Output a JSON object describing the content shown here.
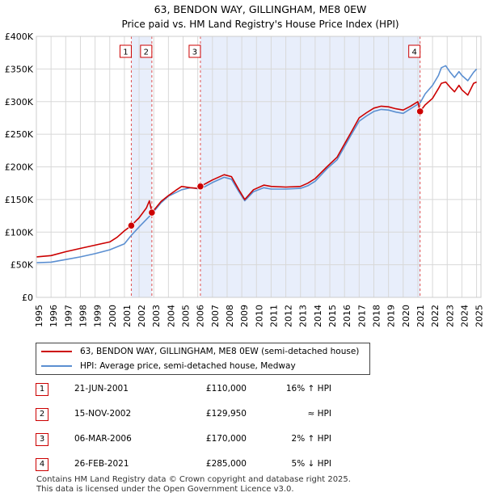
{
  "chart_data": {
    "type": "line",
    "title": "63, BENDON WAY, GILLINGHAM, ME8 0EW",
    "subtitle": "Price paid vs. HM Land Registry's House Price Index (HPI)",
    "xlim": [
      1995,
      2025.3
    ],
    "ylim": [
      0,
      400000
    ],
    "y_ticks": [
      0,
      50000,
      100000,
      150000,
      200000,
      250000,
      300000,
      350000,
      400000
    ],
    "y_tick_labels": [
      "£0",
      "£50K",
      "£100K",
      "£150K",
      "£200K",
      "£250K",
      "£300K",
      "£350K",
      "£400K"
    ],
    "x_ticks": [
      1995,
      1996,
      1997,
      1998,
      1999,
      2000,
      2001,
      2002,
      2003,
      2004,
      2005,
      2006,
      2007,
      2008,
      2009,
      2010,
      2011,
      2012,
      2013,
      2014,
      2015,
      2016,
      2017,
      2018,
      2019,
      2020,
      2021,
      2022,
      2023,
      2024,
      2025
    ],
    "x_tick_labels": [
      "1995",
      "1996",
      "1997",
      "1998",
      "1999",
      "2000",
      "2001",
      "2002",
      "2003",
      "2004",
      "2005",
      "2006",
      "2007",
      "2008",
      "2009",
      "2010",
      "2011",
      "2012",
      "2013",
      "2014",
      "2015",
      "2016",
      "2017",
      "2018",
      "2019",
      "2020",
      "2021",
      "2022",
      "2023",
      "2024",
      "2025"
    ],
    "grid": true,
    "shaded_periods": [
      [
        2001.47,
        2002.87
      ],
      [
        2006.18,
        2021.15
      ]
    ],
    "series": [
      {
        "name": "63, BENDON WAY, GILLINGHAM, ME8 0EW (semi-detached house)",
        "color": "#cc0000",
        "x": [
          1995.0,
          1996.0,
          1997.0,
          1998.0,
          1999.0,
          2000.0,
          2000.5,
          2001.0,
          2001.47,
          2002.0,
          2002.5,
          2002.7,
          2002.87,
          2003.5,
          2004.0,
          2004.5,
          2004.9,
          2005.5,
          2006.0,
          2006.18,
          2007.0,
          2007.8,
          2008.3,
          2008.8,
          2009.2,
          2009.8,
          2010.5,
          2011.0,
          2012.0,
          2013.0,
          2013.5,
          2014.0,
          2014.8,
          2015.5,
          2016.0,
          2016.5,
          2017.0,
          2017.5,
          2018.0,
          2018.5,
          2019.0,
          2019.5,
          2020.0,
          2020.5,
          2021.0,
          2021.15,
          2021.5,
          2022.0,
          2022.4,
          2022.6,
          2022.9,
          2023.2,
          2023.5,
          2023.8,
          2024.0,
          2024.4,
          2024.8,
          2025.0
        ],
        "y": [
          62000,
          64000,
          70000,
          75000,
          80000,
          85000,
          92000,
          102000,
          110000,
          122000,
          137000,
          148000,
          129950,
          147000,
          156000,
          164000,
          170000,
          168000,
          167000,
          170000,
          180000,
          188000,
          185000,
          165000,
          150000,
          165000,
          172000,
          170000,
          169000,
          170000,
          175000,
          182000,
          200000,
          215000,
          235000,
          255000,
          275000,
          283000,
          290000,
          293000,
          292000,
          289000,
          287000,
          293000,
          300000,
          285000,
          295000,
          305000,
          320000,
          328000,
          330000,
          322000,
          315000,
          325000,
          318000,
          310000,
          328000,
          330000
        ]
      },
      {
        "name": "HPI: Average price, semi-detached house, Medway",
        "color": "#5b8fd1",
        "x": [
          1995.0,
          1996.0,
          1997.0,
          1998.0,
          1999.0,
          2000.0,
          2001.0,
          2001.47,
          2002.0,
          2002.87,
          2003.5,
          2004.0,
          2004.9,
          2005.5,
          2006.18,
          2007.0,
          2007.8,
          2008.3,
          2008.8,
          2009.2,
          2009.8,
          2010.5,
          2011.0,
          2012.0,
          2013.0,
          2013.5,
          2014.0,
          2014.8,
          2015.5,
          2016.0,
          2016.5,
          2017.0,
          2017.5,
          2018.0,
          2018.5,
          2019.0,
          2019.5,
          2020.0,
          2020.5,
          2021.0,
          2021.15,
          2021.5,
          2022.0,
          2022.4,
          2022.6,
          2022.9,
          2023.2,
          2023.5,
          2023.8,
          2024.0,
          2024.4,
          2024.8,
          2025.0
        ],
        "y": [
          53000,
          54000,
          58000,
          62000,
          67000,
          73000,
          82000,
          95000,
          108000,
          128000,
          145000,
          155000,
          165000,
          168000,
          166000,
          176000,
          184000,
          181000,
          162000,
          148000,
          162000,
          168000,
          166000,
          166000,
          167000,
          171000,
          178000,
          197000,
          211000,
          231000,
          251000,
          270000,
          278000,
          285000,
          288000,
          287000,
          284000,
          282000,
          289000,
          296000,
          298000,
          312000,
          325000,
          340000,
          352000,
          355000,
          345000,
          337000,
          346000,
          340000,
          332000,
          345000,
          350000
        ]
      }
    ],
    "markers": [
      {
        "label": "1",
        "x": 2001.47,
        "y": 110000
      },
      {
        "label": "2",
        "x": 2002.87,
        "y": 129950
      },
      {
        "label": "3",
        "x": 2006.18,
        "y": 170000
      },
      {
        "label": "4",
        "x": 2021.15,
        "y": 285000
      }
    ]
  },
  "legend": {
    "property_label": "63, BENDON WAY, GILLINGHAM, ME8 0EW (semi-detached house)",
    "hpi_label": "HPI: Average price, semi-detached house, Medway"
  },
  "sales": [
    {
      "num": "1",
      "date": "21-JUN-2001",
      "price": "£110,000",
      "hpi": "16% ↑ HPI"
    },
    {
      "num": "2",
      "date": "15-NOV-2002",
      "price": "£129,950",
      "hpi": "≈ HPI"
    },
    {
      "num": "3",
      "date": "06-MAR-2006",
      "price": "£170,000",
      "hpi": "2% ↑ HPI"
    },
    {
      "num": "4",
      "date": "26-FEB-2021",
      "price": "£285,000",
      "hpi": "5% ↓ HPI"
    }
  ],
  "footer": {
    "line1": "Contains HM Land Registry data © Crown copyright and database right 2025.",
    "line2": "This data is licensed under the Open Government Licence v3.0."
  },
  "colors": {
    "property": "#cc0000",
    "hpi": "#5b8fd1",
    "shade": "#e8eefb",
    "grid": "#d8d8d8"
  }
}
